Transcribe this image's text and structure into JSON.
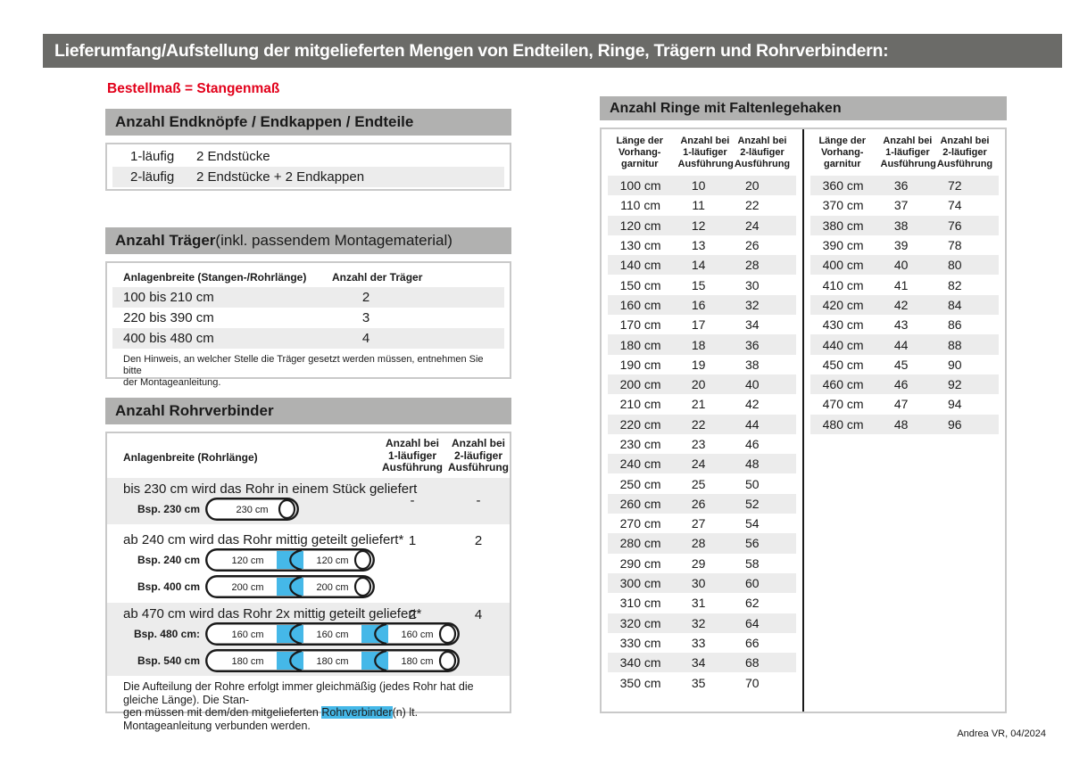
{
  "page": {
    "title": "Lieferumfang/Aufstellung der mitgelieferten Mengen von Endteilen, Ringe, Trägern und Rohrverbindern:",
    "subtitle": "Bestellmaß = Stangenmaß",
    "footer": "Andrea VR, 04/2024"
  },
  "colors": {
    "title_bar_bg": "#6b6b68",
    "section_header_bg": "#b1b1b0",
    "row_alt_bg": "#ececec",
    "accent_red": "#e2001a",
    "connector_blue": "#45b8e8"
  },
  "endteile": {
    "header": "Anzahl Endknöpfe / Endkappen / Endteile",
    "rows": [
      {
        "label": "1-läufig",
        "value": "2 Endstücke"
      },
      {
        "label": "2-läufig",
        "value": "2 Endstücke + 2 Endkappen"
      }
    ]
  },
  "traeger": {
    "header_bold": "Anzahl Träger",
    "header_rest": " (inkl. passendem Montagematerial)",
    "col1": "Anlagenbreite (Stangen-/Rohrlänge)",
    "col2": "Anzahl der Träger",
    "rows": [
      {
        "range": "100 bis 210 cm",
        "count": "2"
      },
      {
        "range": "220 bis 390 cm",
        "count": "3"
      },
      {
        "range": "400 bis 480 cm",
        "count": "4"
      }
    ],
    "note": "Den Hinweis, an welcher Stelle die Träger gesetzt werden müssen, entnehmen Sie bitte\nder Montageanleitung."
  },
  "rohrverbinder": {
    "header": "Anzahl Rohrverbinder",
    "col1": "Anlagenbreite (Rohrlänge)",
    "col2": "Anzahl bei\n1-läufiger\nAusführung",
    "col3": "Anzahl bei\n2-läufiger\nAusführung",
    "blocks": [
      {
        "text": "bis 230 cm wird das Rohr in einem Stück geliefert",
        "count1": "-",
        "count2": "-",
        "examples": [
          {
            "label": "Bsp. 230 cm",
            "segments": [
              "230 cm"
            ]
          }
        ]
      },
      {
        "text": "ab 240 cm wird das Rohr mittig geteilt geliefert*",
        "count1": "1",
        "count2": "2",
        "examples": [
          {
            "label": "Bsp. 240 cm",
            "segments": [
              "120 cm",
              "120 cm"
            ]
          },
          {
            "label": "Bsp. 400 cm",
            "segments": [
              "200 cm",
              "200 cm"
            ]
          }
        ]
      },
      {
        "text": "ab 470 cm wird das Rohr 2x mittig geteilt geliefert*",
        "count1": "2",
        "count2": "4",
        "examples": [
          {
            "label": "Bsp. 480 cm:",
            "segments": [
              "160 cm",
              "160 cm",
              "160 cm"
            ]
          },
          {
            "label": "Bsp. 540 cm",
            "segments": [
              "180 cm",
              "180 cm",
              "180 cm"
            ]
          }
        ]
      }
    ],
    "note_line1": "Die Aufteilung der Rohre erfolgt immer gleichmäßig (jedes Rohr hat die gleiche Länge). Die Stan-",
    "note_line2_pre": "gen müssen mit dem/den mitgelieferten ",
    "note_highlight": "Rohrverbinder",
    "note_line2_post": "(n) lt. Montageanleitung verbunden werden."
  },
  "ringe": {
    "header": "Anzahl Ringe mit Faltenlegehaken",
    "col1": "Länge der\nVorhang-\ngarnitur",
    "col2": "Anzahl bei\n1-läufiger\nAusführung",
    "col3": "Anzahl bei\n2-läufiger\nAusführung",
    "table_left": [
      [
        "100 cm",
        "10",
        "20"
      ],
      [
        "110 cm",
        "11",
        "22"
      ],
      [
        "120 cm",
        "12",
        "24"
      ],
      [
        "130 cm",
        "13",
        "26"
      ],
      [
        "140 cm",
        "14",
        "28"
      ],
      [
        "150 cm",
        "15",
        "30"
      ],
      [
        "160 cm",
        "16",
        "32"
      ],
      [
        "170 cm",
        "17",
        "34"
      ],
      [
        "180 cm",
        "18",
        "36"
      ],
      [
        "190 cm",
        "19",
        "38"
      ],
      [
        "200 cm",
        "20",
        "40"
      ],
      [
        "210 cm",
        "21",
        "42"
      ],
      [
        "220 cm",
        "22",
        "44"
      ],
      [
        "230 cm",
        "23",
        "46"
      ],
      [
        "240 cm",
        "24",
        "48"
      ],
      [
        "250 cm",
        "25",
        "50"
      ],
      [
        "260 cm",
        "26",
        "52"
      ],
      [
        "270 cm",
        "27",
        "54"
      ],
      [
        "280 cm",
        "28",
        "56"
      ],
      [
        "290 cm",
        "29",
        "58"
      ],
      [
        "300 cm",
        "30",
        "60"
      ],
      [
        "310 cm",
        "31",
        "62"
      ],
      [
        "320 cm",
        "32",
        "64"
      ],
      [
        "330 cm",
        "33",
        "66"
      ],
      [
        "340 cm",
        "34",
        "68"
      ],
      [
        "350 cm",
        "35",
        "70"
      ]
    ],
    "table_right": [
      [
        "360 cm",
        "36",
        "72"
      ],
      [
        "370 cm",
        "37",
        "74"
      ],
      [
        "380 cm",
        "38",
        "76"
      ],
      [
        "390 cm",
        "39",
        "78"
      ],
      [
        "400 cm",
        "40",
        "80"
      ],
      [
        "410 cm",
        "41",
        "82"
      ],
      [
        "420 cm",
        "42",
        "84"
      ],
      [
        "430 cm",
        "43",
        "86"
      ],
      [
        "440 cm",
        "44",
        "88"
      ],
      [
        "450 cm",
        "45",
        "90"
      ],
      [
        "460 cm",
        "46",
        "92"
      ],
      [
        "470 cm",
        "47",
        "94"
      ],
      [
        "480 cm",
        "48",
        "96"
      ]
    ]
  }
}
